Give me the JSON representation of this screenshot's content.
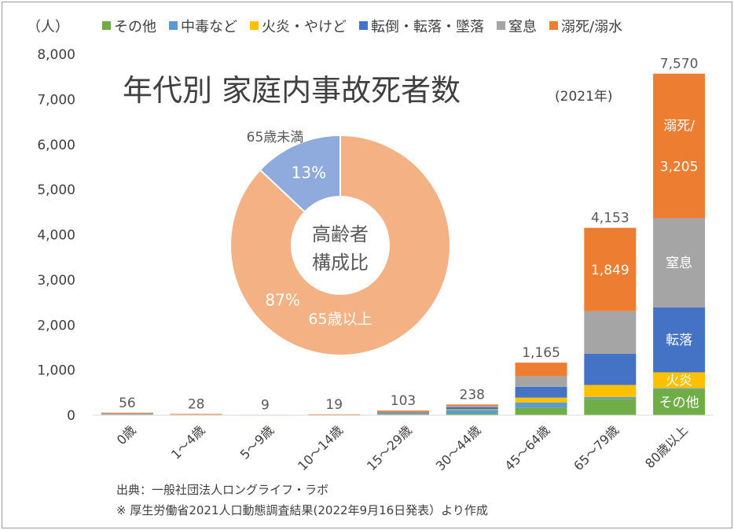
{
  "unit_label": "（人）",
  "title": "年代別 家庭内事故死者数",
  "title_year": "(2021年)",
  "source_line1": "出典：一般社団法人ロングライフ・ラボ",
  "source_line2": "※ 厚生労働省2021人口動態調査結果(2022年9月16日発表）より作成",
  "chart_data": [
    {
      "type": "bar",
      "stacked": true,
      "categories": [
        "0歳",
        "1～4歳",
        "5～9歳",
        "10～14歳",
        "15～29歳",
        "30～44歳",
        "45～64歳",
        "65～79歳",
        "80歳以上"
      ],
      "totals": [
        56,
        28,
        9,
        19,
        103,
        238,
        1165,
        4153,
        7570
      ],
      "total_labels": [
        "56",
        "28",
        "9",
        "19",
        "103",
        "238",
        "1,165",
        "4,153",
        "7,570"
      ],
      "ylim": [
        0,
        8000
      ],
      "yticks": [
        "0",
        "1,000",
        "2,000",
        "3,000",
        "4,000",
        "5,000",
        "6,000",
        "7,000",
        "8,000"
      ],
      "grid": false,
      "legend_position": "top",
      "series": [
        {
          "name": "その他",
          "color": "#70ad47",
          "values": [
            4,
            1,
            0,
            1,
            14,
            34,
            170,
            360,
            580
          ]
        },
        {
          "name": "中毒など",
          "color": "#5b9bd5",
          "values": [
            2,
            1,
            0,
            1,
            22,
            82,
            110,
            40,
            20
          ]
        },
        {
          "name": "火炎・やけど",
          "color": "#ffc000",
          "values": [
            2,
            2,
            1,
            1,
            7,
            16,
            110,
            270,
            350
          ]
        },
        {
          "name": "転倒・転落・墜落",
          "color": "#4472c4",
          "values": [
            3,
            4,
            1,
            3,
            20,
            48,
            240,
            690,
            1440
          ]
        },
        {
          "name": "窒息",
          "color": "#a5a5a5",
          "values": [
            32,
            5,
            1,
            3,
            15,
            28,
            235,
            944,
            1975
          ]
        },
        {
          "name": "溺死/溺水",
          "color": "#ed7d31",
          "values": [
            13,
            15,
            6,
            10,
            25,
            30,
            300,
            1849,
            3205
          ]
        }
      ],
      "segment_labels": [
        {
          "category": "65～79歳",
          "series": "溺死/溺水",
          "lines": [
            "1,849"
          ]
        },
        {
          "category": "80歳以上",
          "series": "溺死/溺水",
          "lines": [
            "溺死/",
            "3,205"
          ]
        },
        {
          "category": "80歳以上",
          "series": "窒息",
          "lines": [
            "窒息"
          ]
        },
        {
          "category": "80歳以上",
          "series": "転倒・転落・墜落",
          "lines": [
            "転落"
          ]
        },
        {
          "category": "80歳以上",
          "series": "火炎・やけど",
          "lines": [
            "火炎"
          ]
        },
        {
          "category": "80歳以上",
          "series": "その他",
          "lines": [
            "その他"
          ]
        }
      ]
    },
    {
      "type": "pie",
      "donut": true,
      "center_label": [
        "高齢者",
        "構成比"
      ],
      "slices": [
        {
          "name": "65歳以上",
          "value": 87,
          "label": "87%",
          "color": "#f4b183"
        },
        {
          "name": "65歳未満",
          "value": 13,
          "label": "13%",
          "color": "#8faadc"
        }
      ]
    }
  ]
}
